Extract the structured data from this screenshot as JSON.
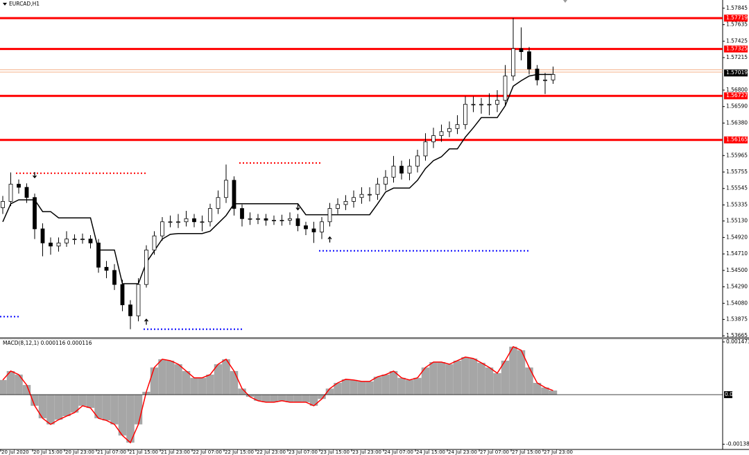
{
  "chart_data": {
    "type": "candlestick",
    "title": "EURCAD,H1",
    "x_labels": [
      "20 Jul 2020",
      "20 Jul 15:00",
      "20 Jul 23:00",
      "21 Jul 07:00",
      "21 Jul 15:00",
      "21 Jul 23:00",
      "22 Jul 07:00",
      "22 Jul 15:00",
      "22 Jul 23:00",
      "23 Jul 07:00",
      "23 Jul 15:00",
      "23 Jul 23:00",
      "24 Jul 07:00",
      "24 Jul 15:00",
      "24 Jul 23:00",
      "27 Jul 07:00",
      "27 Jul 15:00",
      "27 Jul 23:00"
    ],
    "open": [
      1.553,
      1.5538,
      1.556,
      1.5556,
      1.5543,
      1.5503,
      1.5485,
      1.5481,
      1.5485,
      1.549,
      1.549,
      1.549,
      1.5485,
      1.5454,
      1.545,
      1.5432,
      1.5406,
      1.5392,
      1.5432,
      1.5476,
      1.5494,
      1.5512,
      1.5512,
      1.5512,
      1.5516,
      1.5512,
      1.5512,
      1.5529,
      1.5543,
      1.5565,
      1.5529,
      1.5516,
      1.5516,
      1.5516,
      1.5514,
      1.5514,
      1.5514,
      1.5516,
      1.5507,
      1.5503,
      1.5499,
      1.5512,
      1.5529,
      1.5534,
      1.5538,
      1.5543,
      1.5547,
      1.5547,
      1.556,
      1.5569,
      1.5583,
      1.5574,
      1.5583,
      1.5596,
      1.5614,
      1.5622,
      1.5627,
      1.5631,
      1.5636,
      1.5662,
      1.5662,
      1.5662,
      1.5662,
      1.5667,
      1.5698,
      1.5733,
      1.5729,
      1.5707,
      1.5693,
      1.5693
    ],
    "high": [
      1.5545,
      1.5575,
      1.5566,
      1.5561,
      1.5548,
      1.551,
      1.5492,
      1.5492,
      1.55,
      1.5496,
      1.5497,
      1.5495,
      1.549,
      1.5462,
      1.5458,
      1.5438,
      1.5412,
      1.544,
      1.5482,
      1.55,
      1.5518,
      1.552,
      1.5522,
      1.5526,
      1.5522,
      1.552,
      1.5535,
      1.5552,
      1.5585,
      1.557,
      1.5534,
      1.5524,
      1.5522,
      1.5522,
      1.552,
      1.5521,
      1.5524,
      1.5522,
      1.5512,
      1.5512,
      1.5518,
      1.5536,
      1.5542,
      1.5546,
      1.5552,
      1.5556,
      1.5556,
      1.5568,
      1.5578,
      1.5596,
      1.559,
      1.5592,
      1.5604,
      1.5625,
      1.5632,
      1.5636,
      1.564,
      1.5648,
      1.5672,
      1.5672,
      1.567,
      1.5676,
      1.568,
      1.5712,
      1.5772,
      1.576,
      1.5735,
      1.5712,
      1.5702,
      1.571
    ],
    "low": [
      1.5522,
      1.5532,
      1.5548,
      1.5536,
      1.549,
      1.5468,
      1.547,
      1.5474,
      1.548,
      1.5483,
      1.5484,
      1.5478,
      1.5447,
      1.544,
      1.5425,
      1.5398,
      1.5375,
      1.5385,
      1.5428,
      1.547,
      1.5488,
      1.5505,
      1.5504,
      1.5506,
      1.5505,
      1.55,
      1.5506,
      1.5522,
      1.5536,
      1.552,
      1.5506,
      1.5508,
      1.5509,
      1.5507,
      1.5508,
      1.5507,
      1.5508,
      1.55,
      1.5495,
      1.5485,
      1.549,
      1.5506,
      1.5522,
      1.5527,
      1.553,
      1.5535,
      1.5538,
      1.554,
      1.5552,
      1.5562,
      1.5566,
      1.5565,
      1.5575,
      1.559,
      1.5606,
      1.5614,
      1.562,
      1.5624,
      1.563,
      1.5652,
      1.565,
      1.5648,
      1.5652,
      1.566,
      1.5692,
      1.5718,
      1.57,
      1.5686,
      1.5675,
      1.5688
    ],
    "close": [
      1.5538,
      1.556,
      1.5556,
      1.5543,
      1.5503,
      1.5485,
      1.5481,
      1.5485,
      1.549,
      1.549,
      1.549,
      1.5485,
      1.5454,
      1.545,
      1.5432,
      1.5406,
      1.5392,
      1.5432,
      1.5476,
      1.5494,
      1.5512,
      1.5512,
      1.5512,
      1.5516,
      1.5512,
      1.5512,
      1.5529,
      1.5543,
      1.5565,
      1.5529,
      1.5516,
      1.5516,
      1.5516,
      1.5514,
      1.5514,
      1.5514,
      1.5516,
      1.5507,
      1.5503,
      1.5499,
      1.5512,
      1.5529,
      1.5534,
      1.5538,
      1.5543,
      1.5547,
      1.5547,
      1.556,
      1.5569,
      1.5583,
      1.5574,
      1.5583,
      1.5596,
      1.5614,
      1.5622,
      1.5627,
      1.5631,
      1.5636,
      1.5662,
      1.5662,
      1.5662,
      1.5662,
      1.5667,
      1.5698,
      1.5733,
      1.5729,
      1.5707,
      1.5693,
      1.5693,
      1.57
    ],
    "ylim": [
      1.5364,
      1.5795
    ],
    "yticks": [
      1.57845,
      1.57635,
      1.57425,
      1.57215,
      {
        "value": 1.568,
        "label": "1.56800"
      },
      {
        "value": 1.5659,
        "label": "1.56590"
      },
      {
        "value": 1.5638,
        "label": "1.56380"
      },
      1.55965,
      1.55755,
      1.55545,
      1.55335,
      {
        "value": 1.5513,
        "label": "1.55130"
      },
      {
        "value": 1.5492,
        "label": "1.54920"
      },
      {
        "value": 1.5471,
        "label": "1.54710"
      },
      {
        "value": 1.545,
        "label": "1.54500"
      },
      {
        "value": 1.5429,
        "label": "1.54290"
      },
      {
        "value": 1.5408,
        "label": "1.54080"
      },
      1.53875,
      1.53665
    ],
    "trailing_stop": {
      "color": "#000000",
      "values": [
        1.5512,
        1.5535,
        1.554,
        1.554,
        1.554,
        1.5525,
        1.5525,
        1.5517,
        1.5517,
        1.5517,
        1.5517,
        1.5517,
        1.5476,
        1.5476,
        1.5476,
        1.5433,
        1.5433,
        1.5433,
        1.546,
        1.5475,
        1.549,
        1.5496,
        1.5497,
        1.5497,
        1.5497,
        1.5497,
        1.55,
        1.551,
        1.552,
        1.5535,
        1.5535,
        1.5535,
        1.5535,
        1.5535,
        1.5535,
        1.5535,
        1.5535,
        1.5535,
        1.5521,
        1.5521,
        1.5521,
        1.5521,
        1.5521,
        1.5521,
        1.5521,
        1.5521,
        1.5521,
        1.5535,
        1.555,
        1.5555,
        1.5555,
        1.5555,
        1.5565,
        1.558,
        1.559,
        1.5595,
        1.5605,
        1.5605,
        1.562,
        1.5632,
        1.5645,
        1.5645,
        1.5645,
        1.566,
        1.5685,
        1.5692,
        1.5698,
        1.57,
        1.57,
        1.57
      ]
    },
    "levels": [
      {
        "value": 1.57719,
        "color": "#ff0000"
      },
      {
        "value": 1.57325,
        "color": "#ff0000"
      },
      {
        "value": 1.56727,
        "color": "#ff0000"
      },
      {
        "value": 1.56165,
        "color": "#ff0000"
      }
    ],
    "price_lines": {
      "color": "#f5b08a",
      "values": [
        1.5706,
        1.5703
      ]
    },
    "current_price": 1.57019,
    "stops": [
      {
        "price": 1.5574,
        "start": 2,
        "end": 18,
        "color": "#ff0000"
      },
      {
        "price": 1.5587,
        "start": 30,
        "end": 40,
        "color": "#ff0000"
      },
      {
        "price": 1.5391,
        "start": 0,
        "end": 2,
        "color": "#0000ff"
      },
      {
        "price": 1.5375,
        "start": 18,
        "end": 30,
        "color": "#0000ff"
      },
      {
        "price": 1.5475,
        "start": 40,
        "end": 66,
        "color": "#0000ff"
      }
    ],
    "signals": [
      {
        "index": 4,
        "price": 1.5571,
        "dir": "down"
      },
      {
        "index": 18,
        "price": 1.5385,
        "dir": "up"
      },
      {
        "index": 37,
        "price": 1.553,
        "dir": "down"
      },
      {
        "index": 41,
        "price": 1.549,
        "dir": "up"
      }
    ],
    "macd": {
      "title": "MACD(8,12,1) 0.000116 0.000116",
      "color": "#a6a6a6",
      "line_color": "#ff0000",
      "ylim": [
        -0.00153,
        0.00155
      ],
      "yticks": [
        0.001473,
        {
          "value": 0,
          "label": "0.00"
        },
        -0.001383
      ],
      "values": [
        0.00041,
        0.00066,
        0.00056,
        0.00027,
        -0.00031,
        -0.00066,
        -0.00083,
        -0.0007,
        -0.0006,
        -0.0005,
        -0.00031,
        -0.00037,
        -0.00066,
        -0.00072,
        -0.00083,
        -0.00114,
        -0.00134,
        -0.00083,
        8e-05,
        0.00076,
        0.00099,
        0.00095,
        0.00085,
        0.00066,
        0.00047,
        0.00047,
        0.00056,
        0.00085,
        0.00099,
        0.00066,
        0.00017,
        -6e-05,
        -0.00017,
        -0.00021,
        -0.00021,
        -0.00017,
        -0.00021,
        -0.00021,
        -0.00021,
        -0.00031,
        -0.00012,
        0.00017,
        0.00033,
        0.00043,
        0.00041,
        0.00037,
        0.00037,
        0.0005,
        0.00056,
        0.00066,
        0.00047,
        0.00041,
        0.00047,
        0.00076,
        0.00091,
        0.00091,
        0.00085,
        0.00095,
        0.00105,
        0.00101,
        0.00089,
        0.00076,
        0.0006,
        0.00095,
        0.00134,
        0.00124,
        0.00076,
        0.00033,
        0.0002,
        0.000116
      ]
    }
  }
}
